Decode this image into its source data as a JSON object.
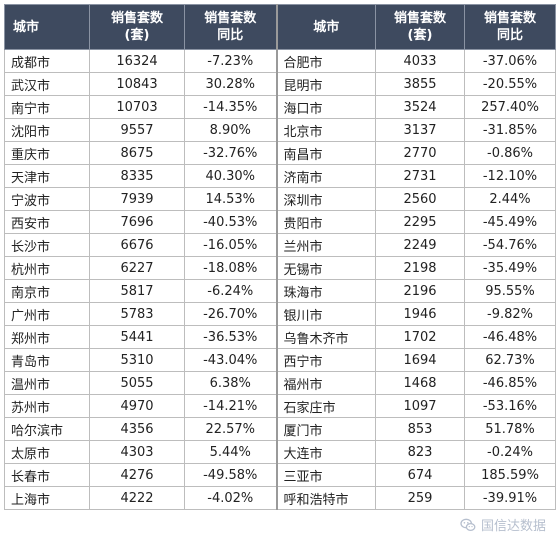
{
  "headers": {
    "city": "城市",
    "count_line1": "销售套数",
    "count_line2": "(套)",
    "yoy_line1": "销售套数",
    "yoy_line2": "同比"
  },
  "rows": [
    {
      "l_city": "成都市",
      "l_count": "16324",
      "l_yoy": "-7.23%",
      "r_city": "合肥市",
      "r_count": "4033",
      "r_yoy": "-37.06%"
    },
    {
      "l_city": "武汉市",
      "l_count": "10843",
      "l_yoy": "30.28%",
      "r_city": "昆明市",
      "r_count": "3855",
      "r_yoy": "-20.55%"
    },
    {
      "l_city": "南宁市",
      "l_count": "10703",
      "l_yoy": "-14.35%",
      "r_city": "海口市",
      "r_count": "3524",
      "r_yoy": "257.40%"
    },
    {
      "l_city": "沈阳市",
      "l_count": "9557",
      "l_yoy": "8.90%",
      "r_city": "北京市",
      "r_count": "3137",
      "r_yoy": "-31.85%"
    },
    {
      "l_city": "重庆市",
      "l_count": "8675",
      "l_yoy": "-32.76%",
      "r_city": "南昌市",
      "r_count": "2770",
      "r_yoy": "-0.86%"
    },
    {
      "l_city": "天津市",
      "l_count": "8335",
      "l_yoy": "40.30%",
      "r_city": "济南市",
      "r_count": "2731",
      "r_yoy": "-12.10%"
    },
    {
      "l_city": "宁波市",
      "l_count": "7939",
      "l_yoy": "14.53%",
      "r_city": "深圳市",
      "r_count": "2560",
      "r_yoy": "2.44%"
    },
    {
      "l_city": "西安市",
      "l_count": "7696",
      "l_yoy": "-40.53%",
      "r_city": "贵阳市",
      "r_count": "2295",
      "r_yoy": "-45.49%"
    },
    {
      "l_city": "长沙市",
      "l_count": "6676",
      "l_yoy": "-16.05%",
      "r_city": "兰州市",
      "r_count": "2249",
      "r_yoy": "-54.76%"
    },
    {
      "l_city": "杭州市",
      "l_count": "6227",
      "l_yoy": "-18.08%",
      "r_city": "无锡市",
      "r_count": "2198",
      "r_yoy": "-35.49%"
    },
    {
      "l_city": "南京市",
      "l_count": "5817",
      "l_yoy": "-6.24%",
      "r_city": "珠海市",
      "r_count": "2196",
      "r_yoy": "95.55%"
    },
    {
      "l_city": "广州市",
      "l_count": "5783",
      "l_yoy": "-26.70%",
      "r_city": "银川市",
      "r_count": "1946",
      "r_yoy": "-9.82%"
    },
    {
      "l_city": "郑州市",
      "l_count": "5441",
      "l_yoy": "-36.53%",
      "r_city": "乌鲁木齐市",
      "r_count": "1702",
      "r_yoy": "-46.48%"
    },
    {
      "l_city": "青岛市",
      "l_count": "5310",
      "l_yoy": "-43.04%",
      "r_city": "西宁市",
      "r_count": "1694",
      "r_yoy": "62.73%"
    },
    {
      "l_city": "温州市",
      "l_count": "5055",
      "l_yoy": "6.38%",
      "r_city": "福州市",
      "r_count": "1468",
      "r_yoy": "-46.85%"
    },
    {
      "l_city": "苏州市",
      "l_count": "4970",
      "l_yoy": "-14.21%",
      "r_city": "石家庄市",
      "r_count": "1097",
      "r_yoy": "-53.16%"
    },
    {
      "l_city": "哈尔滨市",
      "l_count": "4356",
      "l_yoy": "22.57%",
      "r_city": "厦门市",
      "r_count": "853",
      "r_yoy": "51.78%"
    },
    {
      "l_city": "太原市",
      "l_count": "4303",
      "l_yoy": "5.44%",
      "r_city": "大连市",
      "r_count": "823",
      "r_yoy": "-0.24%"
    },
    {
      "l_city": "长春市",
      "l_count": "4276",
      "l_yoy": "-49.58%",
      "r_city": "三亚市",
      "r_count": "674",
      "r_yoy": "185.59%"
    },
    {
      "l_city": "上海市",
      "l_count": "4222",
      "l_yoy": "-4.02%",
      "r_city": "呼和浩特市",
      "r_count": "259",
      "r_yoy": "-39.91%"
    }
  ],
  "watermark": {
    "text": "国信达数据",
    "icon": "wechat-icon"
  },
  "colors": {
    "header_bg": "#3e4a5f",
    "header_text": "#ffffff",
    "watermark": "#aab4c6"
  }
}
